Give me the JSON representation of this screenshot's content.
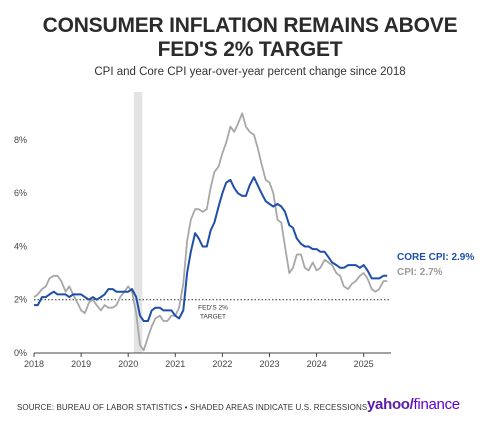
{
  "header": {
    "title_line1": "CONSUMER INFLATION REMAINS ABOVE",
    "title_line2": "FED'S 2% TARGET",
    "subtitle": "CPI and Core CPI year-over-year percent change since 2018"
  },
  "footer": {
    "source": "SOURCE: BUREAU OF LABOR STATISTICS • SHADED AREAS INDICATE U.S. RECESSIONS",
    "logo_text": "yahoo/",
    "logo_text2": "finance"
  },
  "colors": {
    "core": "#1f4fa8",
    "cpi": "#a7a7a7",
    "recession": "#e3e3e3",
    "axis": "#555555"
  },
  "chart_data": {
    "type": "line",
    "x_axis": {
      "range": [
        2018.0,
        2025.58
      ],
      "ticks": [
        2018,
        2019,
        2020,
        2021,
        2022,
        2023,
        2024,
        2025
      ]
    },
    "y_axis": {
      "range": [
        0,
        9.8
      ],
      "ticks": [
        0,
        2,
        4,
        6,
        8
      ],
      "tick_labels": [
        "0%",
        "2%",
        "4%",
        "6%",
        "8%"
      ]
    },
    "recession": {
      "start": 2020.12,
      "end": 2020.3
    },
    "target": {
      "value": 2,
      "label_line1": "FED'S 2%",
      "label_line2": "TARGET"
    },
    "series": [
      {
        "name": "CORE CPI",
        "end_label": "CORE CPI: 2.9%",
        "color": "#1f4fa8",
        "x": [
          2018.0,
          2018.08,
          2018.17,
          2018.25,
          2018.33,
          2018.42,
          2018.5,
          2018.58,
          2018.67,
          2018.75,
          2018.83,
          2018.92,
          2019.0,
          2019.08,
          2019.17,
          2019.25,
          2019.33,
          2019.42,
          2019.5,
          2019.58,
          2019.67,
          2019.75,
          2019.83,
          2019.92,
          2020.0,
          2020.08,
          2020.17,
          2020.25,
          2020.33,
          2020.42,
          2020.5,
          2020.58,
          2020.67,
          2020.75,
          2020.83,
          2020.92,
          2021.0,
          2021.08,
          2021.17,
          2021.25,
          2021.33,
          2021.42,
          2021.5,
          2021.58,
          2021.67,
          2021.75,
          2021.83,
          2021.92,
          2022.0,
          2022.08,
          2022.17,
          2022.25,
          2022.33,
          2022.42,
          2022.5,
          2022.58,
          2022.67,
          2022.75,
          2022.83,
          2022.92,
          2023.0,
          2023.08,
          2023.17,
          2023.25,
          2023.33,
          2023.42,
          2023.5,
          2023.58,
          2023.67,
          2023.75,
          2023.83,
          2023.92,
          2024.0,
          2024.08,
          2024.17,
          2024.25,
          2024.33,
          2024.42,
          2024.5,
          2024.58,
          2024.67,
          2024.75,
          2024.83,
          2024.92,
          2025.0,
          2025.08,
          2025.17,
          2025.25,
          2025.33,
          2025.42,
          2025.5
        ],
        "values": [
          1.8,
          1.8,
          2.1,
          2.1,
          2.2,
          2.3,
          2.2,
          2.2,
          2.2,
          2.1,
          2.2,
          2.2,
          2.2,
          2.1,
          2.0,
          2.1,
          2.0,
          2.1,
          2.2,
          2.4,
          2.4,
          2.3,
          2.3,
          2.3,
          2.3,
          2.4,
          2.1,
          1.4,
          1.2,
          1.2,
          1.6,
          1.7,
          1.7,
          1.6,
          1.6,
          1.6,
          1.4,
          1.3,
          1.6,
          3.0,
          3.8,
          4.5,
          4.3,
          4.0,
          4.0,
          4.6,
          4.9,
          5.5,
          6.0,
          6.4,
          6.5,
          6.2,
          6.0,
          5.9,
          5.9,
          6.3,
          6.6,
          6.3,
          6.0,
          5.7,
          5.6,
          5.5,
          5.6,
          5.5,
          5.3,
          4.8,
          4.7,
          4.3,
          4.1,
          4.0,
          4.0,
          3.9,
          3.9,
          3.8,
          3.8,
          3.6,
          3.4,
          3.3,
          3.2,
          3.2,
          3.3,
          3.3,
          3.3,
          3.2,
          3.3,
          3.1,
          2.8,
          2.8,
          2.8,
          2.9,
          2.9
        ]
      },
      {
        "name": "CPI",
        "end_label": "CPI: 2.7%",
        "color": "#a7a7a7",
        "x": [
          2018.0,
          2018.08,
          2018.17,
          2018.25,
          2018.33,
          2018.42,
          2018.5,
          2018.58,
          2018.67,
          2018.75,
          2018.83,
          2018.92,
          2019.0,
          2019.08,
          2019.17,
          2019.25,
          2019.33,
          2019.42,
          2019.5,
          2019.58,
          2019.67,
          2019.75,
          2019.83,
          2019.92,
          2020.0,
          2020.08,
          2020.17,
          2020.25,
          2020.33,
          2020.42,
          2020.5,
          2020.58,
          2020.67,
          2020.75,
          2020.83,
          2020.92,
          2021.0,
          2021.08,
          2021.17,
          2021.25,
          2021.33,
          2021.42,
          2021.5,
          2021.58,
          2021.67,
          2021.75,
          2021.83,
          2021.92,
          2022.0,
          2022.08,
          2022.17,
          2022.25,
          2022.33,
          2022.42,
          2022.5,
          2022.58,
          2022.67,
          2022.75,
          2022.83,
          2022.92,
          2023.0,
          2023.08,
          2023.17,
          2023.25,
          2023.33,
          2023.42,
          2023.5,
          2023.58,
          2023.67,
          2023.75,
          2023.83,
          2023.92,
          2024.0,
          2024.08,
          2024.17,
          2024.25,
          2024.33,
          2024.42,
          2024.5,
          2024.58,
          2024.67,
          2024.75,
          2024.83,
          2024.92,
          2025.0,
          2025.08,
          2025.17,
          2025.25,
          2025.33,
          2025.42,
          2025.5
        ],
        "values": [
          2.1,
          2.2,
          2.4,
          2.5,
          2.8,
          2.9,
          2.9,
          2.7,
          2.3,
          2.5,
          2.2,
          1.9,
          1.6,
          1.5,
          1.9,
          2.0,
          1.8,
          1.6,
          1.8,
          1.7,
          1.7,
          1.8,
          2.1,
          2.3,
          2.5,
          2.3,
          1.5,
          0.3,
          0.1,
          0.6,
          1.0,
          1.3,
          1.4,
          1.2,
          1.2,
          1.4,
          1.4,
          1.7,
          2.6,
          4.2,
          5.0,
          5.4,
          5.4,
          5.3,
          5.4,
          6.2,
          6.8,
          7.0,
          7.5,
          7.9,
          8.5,
          8.3,
          8.6,
          9.0,
          8.5,
          8.3,
          8.2,
          7.7,
          7.1,
          6.5,
          6.4,
          6.0,
          5.0,
          4.9,
          4.0,
          3.0,
          3.2,
          3.7,
          3.7,
          3.2,
          3.1,
          3.4,
          3.1,
          3.2,
          3.5,
          3.4,
          3.3,
          3.0,
          2.9,
          2.5,
          2.4,
          2.6,
          2.7,
          2.9,
          3.0,
          2.8,
          2.4,
          2.3,
          2.4,
          2.7,
          2.7
        ]
      }
    ]
  }
}
